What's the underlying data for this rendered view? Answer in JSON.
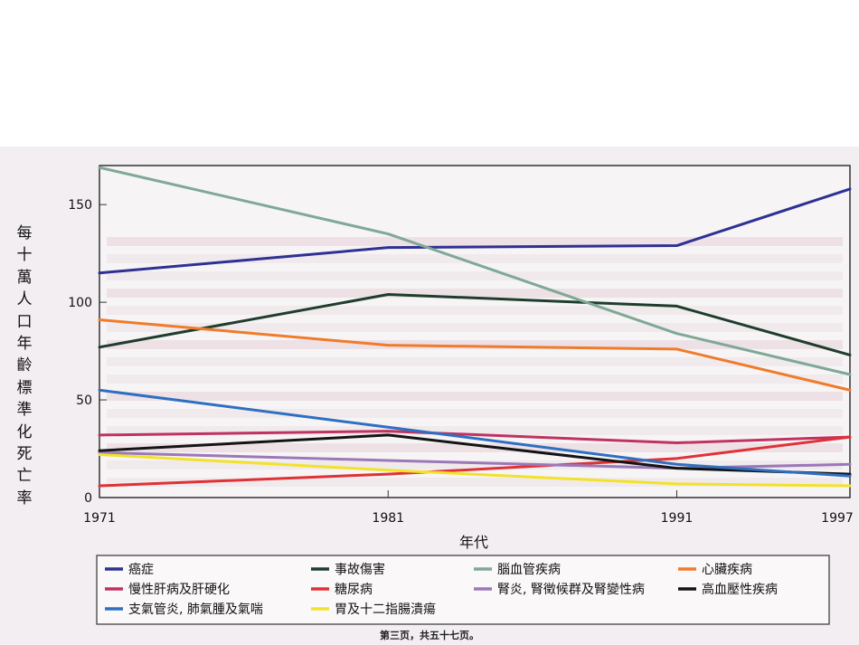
{
  "chart_data": {
    "type": "line",
    "ylabel": "每十萬人口年齡標準化死亡率",
    "xlabel": "年代",
    "x": [
      1971,
      1981,
      1991,
      1997
    ],
    "x_tick_labels": [
      "1971",
      "1981",
      "1991",
      "1997"
    ],
    "xlim": [
      1971,
      1997
    ],
    "ylim": [
      0,
      170
    ],
    "y_ticks": [
      0,
      50,
      100,
      150
    ],
    "grid": false,
    "legend_position": "bottom",
    "series": [
      {
        "name": "癌症",
        "color": "#2e3192",
        "values": [
          115,
          128,
          129,
          158
        ]
      },
      {
        "name": "事故傷害",
        "color": "#1f3d2c",
        "values": [
          77,
          104,
          98,
          73
        ]
      },
      {
        "name": "腦血管疾病",
        "color": "#7fa896",
        "values": [
          169,
          135,
          84,
          63
        ]
      },
      {
        "name": "心臟疾病",
        "color": "#f07b2b",
        "values": [
          91,
          78,
          76,
          55
        ]
      },
      {
        "name": "慢性肝病及肝硬化",
        "color": "#c0325f",
        "values": [
          32,
          34,
          28,
          31
        ]
      },
      {
        "name": "糖尿病",
        "color": "#e03236",
        "values": [
          6,
          12,
          20,
          31
        ]
      },
      {
        "name": "腎炎, 腎徵候群及腎變性病",
        "color": "#9b78b8",
        "values": [
          23,
          19,
          15,
          17
        ]
      },
      {
        "name": "高血壓性疾病",
        "color": "#141414",
        "values": [
          24,
          32,
          15,
          12
        ]
      },
      {
        "name": "支氣管炎, 肺氣腫及氣喘",
        "color": "#2f6fc0",
        "values": [
          55,
          36,
          17,
          11
        ]
      },
      {
        "name": "胃及十二指腸潰瘍",
        "color": "#f2e22a",
        "values": [
          22,
          14,
          7,
          6
        ]
      }
    ]
  },
  "footer": {
    "page_text": "第三页，共五十七页。"
  }
}
